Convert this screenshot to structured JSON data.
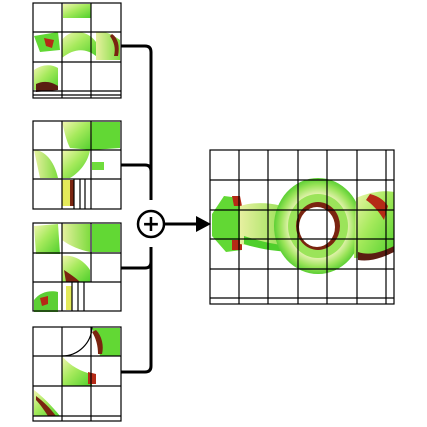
{
  "diagram": {
    "operator_symbol": "+",
    "inputs": [
      {
        "id": "tile-set-1"
      },
      {
        "id": "tile-set-2"
      },
      {
        "id": "tile-set-3"
      },
      {
        "id": "tile-set-4"
      }
    ],
    "output": {
      "id": "combined-grid"
    },
    "colors": {
      "grid_line": "#000000",
      "connector": "#000000",
      "surface_green": "#6fdc3c",
      "surface_light": "#f2f5b0",
      "surface_yellow": "#e4ea5a",
      "surface_red": "#b0231a",
      "surface_dark": "#5a1d12",
      "background": "#ffffff"
    }
  }
}
